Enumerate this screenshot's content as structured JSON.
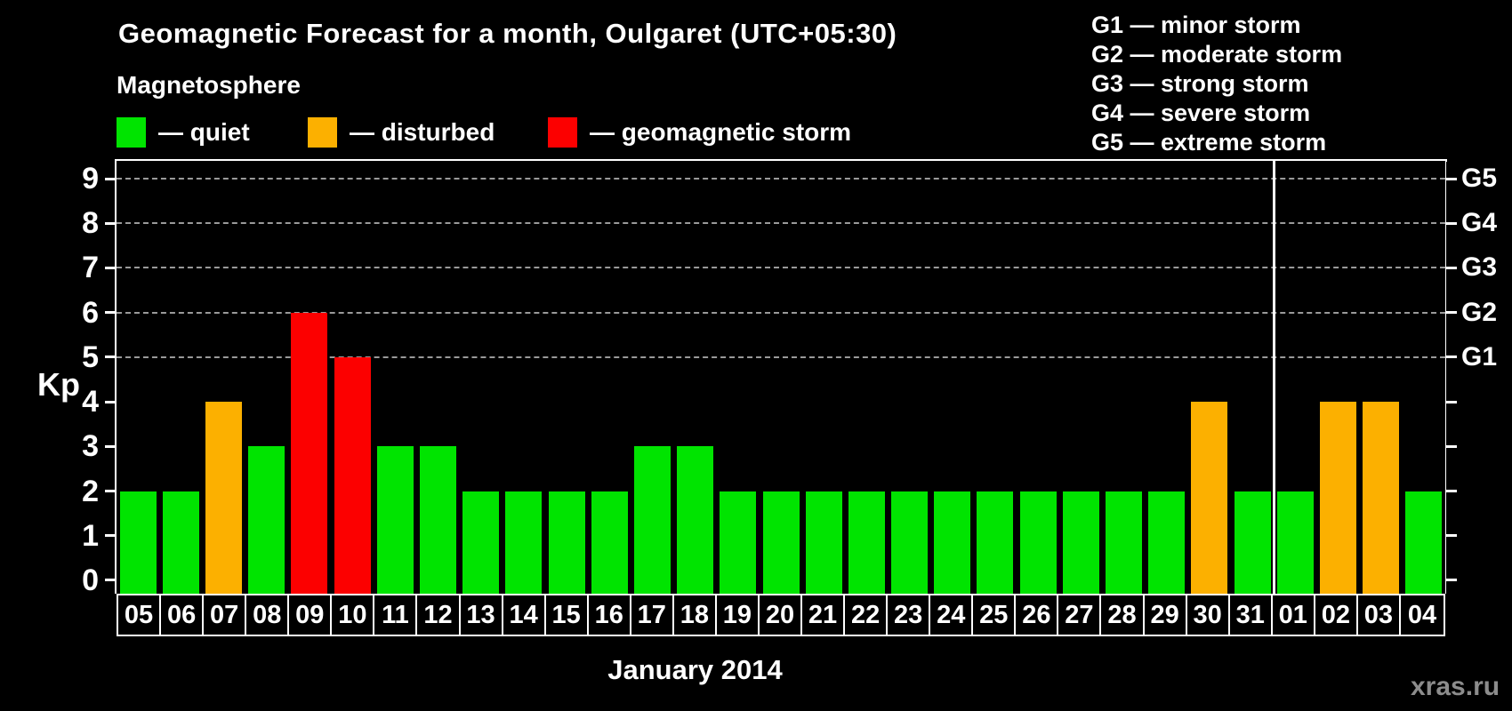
{
  "title": "Geomagnetic Forecast for a month, Oulgaret (UTC+05:30)",
  "legend": {
    "title": "Magnetosphere",
    "items": [
      {
        "status": "quiet",
        "label": "— quiet",
        "color": "#00e400"
      },
      {
        "status": "disturbed",
        "label": "— disturbed",
        "color": "#fcb000"
      },
      {
        "status": "storm",
        "label": "— geomagnetic storm",
        "color": "#fc0000"
      }
    ]
  },
  "g_scale_legend": [
    "G1 — minor storm",
    "G2 — moderate storm",
    "G3 — strong storm",
    "G4 — severe storm",
    "G5 — extreme storm"
  ],
  "watermark": "xras.ru",
  "chart_data": {
    "type": "bar",
    "title": "Geomagnetic Forecast for a month, Oulgaret (UTC+05:30)",
    "xlabel": "January 2014",
    "ylabel": "Kp",
    "ylim": [
      -0.3,
      9.4
    ],
    "yticks": [
      0,
      1,
      2,
      3,
      4,
      5,
      6,
      7,
      8,
      9
    ],
    "gridline_kp": [
      5,
      6,
      7,
      8,
      9
    ],
    "grid": "dashed",
    "right_axis": [
      {
        "label": "G1",
        "kp": 5
      },
      {
        "label": "G2",
        "kp": 6
      },
      {
        "label": "G3",
        "kp": 7
      },
      {
        "label": "G4",
        "kp": 8
      },
      {
        "label": "G5",
        "kp": 9
      }
    ],
    "categories": [
      "05",
      "06",
      "07",
      "08",
      "09",
      "10",
      "11",
      "12",
      "13",
      "14",
      "15",
      "16",
      "17",
      "18",
      "19",
      "20",
      "21",
      "22",
      "23",
      "24",
      "25",
      "26",
      "27",
      "28",
      "29",
      "30",
      "31",
      "01",
      "02",
      "03",
      "04"
    ],
    "values": [
      2,
      2,
      4,
      3,
      6,
      5,
      3,
      3,
      2,
      2,
      2,
      2,
      3,
      3,
      2,
      2,
      2,
      2,
      2,
      2,
      2,
      2,
      2,
      2,
      2,
      4,
      2,
      2,
      4,
      4,
      2
    ],
    "statuses": [
      "quiet",
      "quiet",
      "disturbed",
      "quiet",
      "storm",
      "storm",
      "quiet",
      "quiet",
      "quiet",
      "quiet",
      "quiet",
      "quiet",
      "quiet",
      "quiet",
      "quiet",
      "quiet",
      "quiet",
      "quiet",
      "quiet",
      "quiet",
      "quiet",
      "quiet",
      "quiet",
      "quiet",
      "quiet",
      "disturbed",
      "quiet",
      "quiet",
      "disturbed",
      "disturbed",
      "quiet"
    ],
    "series_colors": {
      "quiet": "#00e400",
      "disturbed": "#fcb000",
      "storm": "#fc0000"
    },
    "january_days": 27,
    "month_label": "January 2014"
  }
}
